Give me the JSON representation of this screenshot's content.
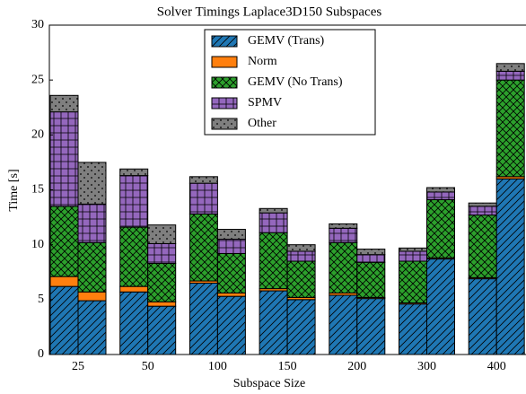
{
  "chart_data": {
    "type": "grouped-stacked-bar",
    "title": "Solver Timings Laplace3D150 Subspaces",
    "x_label": "Subspace Size",
    "y_label": "Time [s]",
    "categories": [
      "25",
      "50",
      "100",
      "150",
      "200",
      "300",
      "400"
    ],
    "series": [
      {
        "name": "GEMV (Trans)",
        "color": "#1f77b4",
        "hatch": "//",
        "values": [
          [
            6.2,
            4.9
          ],
          [
            5.7,
            4.4
          ],
          [
            6.5,
            5.3
          ],
          [
            5.8,
            5.0
          ],
          [
            5.4,
            5.1
          ],
          [
            4.6,
            8.7
          ],
          [
            6.9,
            16.0
          ]
        ]
      },
      {
        "name": "Norm",
        "color": "#ff7f0e",
        "hatch": "none",
        "values": [
          [
            0.9,
            0.8
          ],
          [
            0.5,
            0.4
          ],
          [
            0.2,
            0.3
          ],
          [
            0.2,
            0.2
          ],
          [
            0.2,
            0.1
          ],
          [
            0.1,
            0.1
          ],
          [
            0.1,
            0.2
          ]
        ]
      },
      {
        "name": "GEMV (No Trans)",
        "color": "#2ca02c",
        "hatch": "xx",
        "values": [
          [
            6.4,
            4.5
          ],
          [
            5.4,
            3.5
          ],
          [
            6.1,
            3.6
          ],
          [
            5.1,
            3.3
          ],
          [
            4.6,
            3.2
          ],
          [
            3.8,
            5.3
          ],
          [
            5.7,
            8.8
          ]
        ]
      },
      {
        "name": "SPMV",
        "color": "#9467bd",
        "hatch": "+",
        "values": [
          [
            8.6,
            3.5
          ],
          [
            4.7,
            1.8
          ],
          [
            2.8,
            1.3
          ],
          [
            1.8,
            0.9
          ],
          [
            1.3,
            0.7
          ],
          [
            0.9,
            0.7
          ],
          [
            0.8,
            0.8
          ]
        ]
      },
      {
        "name": "Other",
        "color": "#7f7f7f",
        "hatch": ".",
        "values": [
          [
            1.5,
            3.8
          ],
          [
            0.6,
            1.7
          ],
          [
            0.6,
            0.9
          ],
          [
            0.4,
            0.6
          ],
          [
            0.4,
            0.5
          ],
          [
            0.3,
            0.4
          ],
          [
            0.3,
            0.7
          ]
        ]
      }
    ],
    "ylim": [
      0,
      30
    ],
    "yticks": [
      0,
      5,
      10,
      15,
      20,
      25,
      30
    ],
    "grid": false,
    "legend": "upper center"
  }
}
